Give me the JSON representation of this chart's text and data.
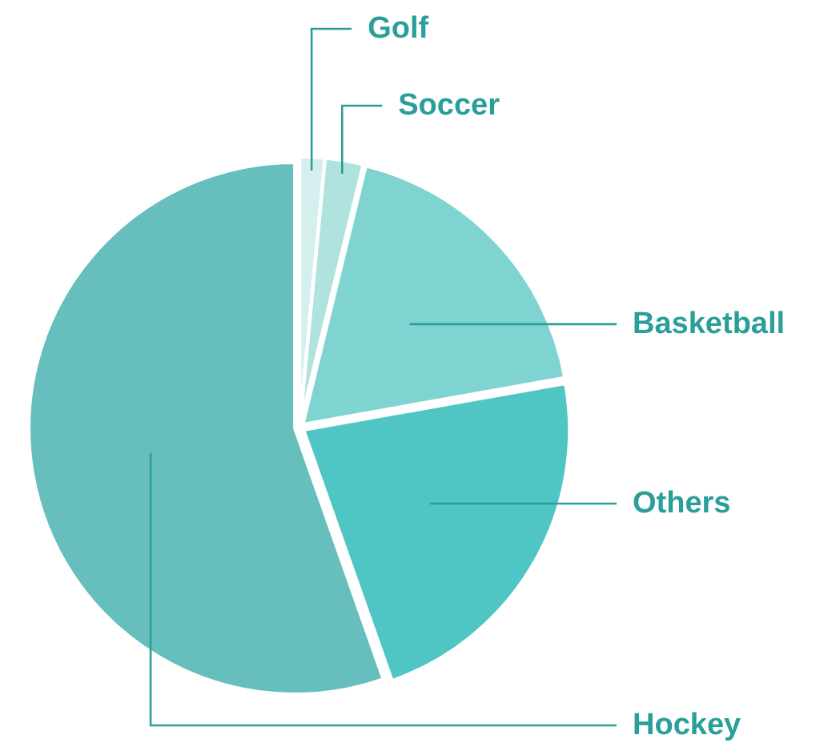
{
  "chart_data": {
    "type": "pie",
    "categories": [
      "Golf",
      "Soccer",
      "Basketball",
      "Others",
      "Hockey"
    ],
    "values": [
      1.5,
      2.3,
      18.4,
      22.4,
      55.4
    ],
    "colors": [
      "#d4efed",
      "#b0e2de",
      "#7fd4d2",
      "#4fc6c4",
      "#66bfbd"
    ]
  }
}
